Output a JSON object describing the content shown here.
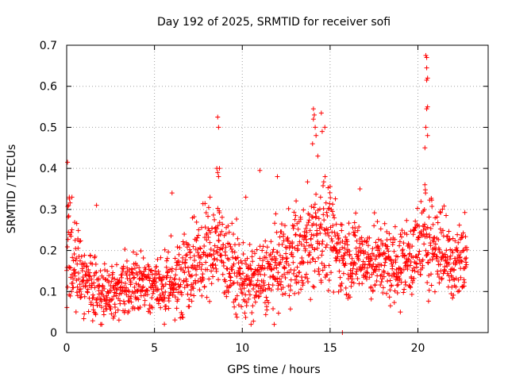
{
  "chart_data": {
    "type": "scatter",
    "title": "Day 192 of 2025, SRMTID for receiver sofi",
    "xlabel": "GPS time / hours",
    "ylabel": "SRMTID / TECUs",
    "xlim": [
      0,
      24
    ],
    "ylim": [
      0,
      0.7
    ],
    "xticks": [
      0,
      5,
      10,
      15,
      20
    ],
    "xtick_labels": [
      "0",
      "5",
      "10",
      "15",
      "20"
    ],
    "yticks": [
      0,
      0.1,
      0.2,
      0.3,
      0.4,
      0.5,
      0.6,
      0.7
    ],
    "ytick_labels": [
      "0",
      "0.1",
      "0.2",
      "0.3",
      "0.4",
      "0.5",
      "0.6",
      "0.7"
    ],
    "grid": true,
    "marker": "+",
    "color": "#ff0000",
    "series": [
      {
        "name": "SRMTID",
        "profile_hours": [
          0.0,
          0.5,
          1.0,
          1.5,
          2.0,
          2.5,
          3.0,
          3.5,
          4.0,
          4.5,
          5.0,
          5.5,
          6.0,
          6.5,
          7.0,
          7.5,
          8.0,
          8.5,
          9.0,
          9.5,
          10.0,
          10.5,
          11.0,
          11.5,
          12.0,
          12.5,
          13.0,
          13.5,
          14.0,
          14.5,
          15.0,
          15.5,
          16.0,
          16.5,
          17.0,
          17.5,
          18.0,
          18.5,
          19.0,
          19.5,
          20.0,
          20.5,
          21.0,
          21.5,
          22.0,
          22.5,
          22.8
        ],
        "median_values": [
          0.2,
          0.16,
          0.13,
          0.11,
          0.1,
          0.1,
          0.11,
          0.11,
          0.12,
          0.12,
          0.11,
          0.11,
          0.12,
          0.14,
          0.16,
          0.17,
          0.2,
          0.22,
          0.19,
          0.15,
          0.13,
          0.12,
          0.13,
          0.14,
          0.16,
          0.18,
          0.2,
          0.19,
          0.24,
          0.25,
          0.23,
          0.2,
          0.18,
          0.19,
          0.18,
          0.17,
          0.18,
          0.16,
          0.17,
          0.18,
          0.2,
          0.24,
          0.21,
          0.2,
          0.17,
          0.18,
          0.2
        ],
        "spread": [
          0.07,
          0.05,
          0.04,
          0.04,
          0.035,
          0.035,
          0.035,
          0.035,
          0.035,
          0.035,
          0.035,
          0.035,
          0.04,
          0.045,
          0.05,
          0.05,
          0.055,
          0.06,
          0.055,
          0.05,
          0.045,
          0.045,
          0.045,
          0.045,
          0.05,
          0.05,
          0.055,
          0.055,
          0.07,
          0.07,
          0.06,
          0.05,
          0.045,
          0.045,
          0.045,
          0.045,
          0.045,
          0.045,
          0.045,
          0.045,
          0.05,
          0.07,
          0.05,
          0.05,
          0.05,
          0.05,
          0.06
        ],
        "outliers": [
          [
            0.05,
            0.415
          ],
          [
            0.15,
            0.33
          ],
          [
            0.3,
            0.33
          ],
          [
            0.1,
            0.31
          ],
          [
            8.6,
            0.525
          ],
          [
            8.65,
            0.5
          ],
          [
            8.55,
            0.4
          ],
          [
            8.6,
            0.39
          ],
          [
            8.7,
            0.4
          ],
          [
            8.65,
            0.38
          ],
          [
            14.05,
            0.545
          ],
          [
            14.1,
            0.53
          ],
          [
            14.05,
            0.52
          ],
          [
            14.15,
            0.5
          ],
          [
            14.2,
            0.48
          ],
          [
            14.5,
            0.535
          ],
          [
            14.7,
            0.5
          ],
          [
            14.55,
            0.49
          ],
          [
            14.0,
            0.46
          ],
          [
            14.3,
            0.43
          ],
          [
            20.45,
            0.675
          ],
          [
            20.5,
            0.67
          ],
          [
            20.5,
            0.645
          ],
          [
            20.55,
            0.62
          ],
          [
            20.5,
            0.615
          ],
          [
            20.55,
            0.55
          ],
          [
            20.5,
            0.545
          ],
          [
            20.45,
            0.5
          ],
          [
            20.55,
            0.48
          ],
          [
            20.4,
            0.45
          ],
          [
            6.0,
            0.34
          ],
          [
            10.2,
            0.33
          ],
          [
            11.0,
            0.395
          ],
          [
            12.0,
            0.38
          ],
          [
            16.7,
            0.35
          ],
          [
            1.7,
            0.31
          ],
          [
            15.7,
            0.0
          ],
          [
            10.5,
            0.02
          ],
          [
            2.0,
            0.02
          ],
          [
            19.0,
            0.05
          ]
        ]
      }
    ]
  }
}
